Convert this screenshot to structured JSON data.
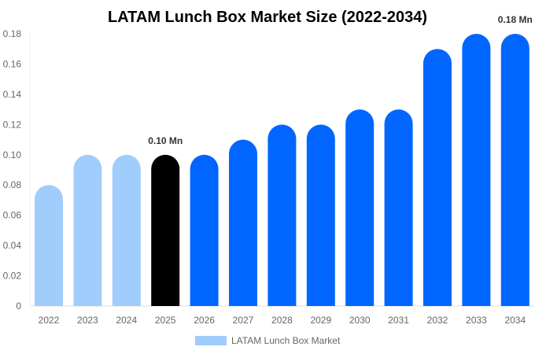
{
  "chart_data": {
    "type": "bar",
    "title": "LATAM Lunch Box Market Size (2022-2034)",
    "categories": [
      "2022",
      "2023",
      "2024",
      "2025",
      "2026",
      "2027",
      "2028",
      "2029",
      "2030",
      "2031",
      "2032",
      "2033",
      "2034"
    ],
    "series": [
      {
        "name": "LATAM Lunch Box Market",
        "values": [
          0.08,
          0.1,
          0.1,
          0.1,
          0.1,
          0.11,
          0.12,
          0.12,
          0.13,
          0.13,
          0.17,
          0.18,
          0.18
        ]
      }
    ],
    "data_labels": [
      {
        "category": "2025",
        "text": "0.10 Mn"
      },
      {
        "category": "2034",
        "text": "0.18 Mn"
      }
    ],
    "yticks": [
      "0",
      "0.02",
      "0.04",
      "0.06",
      "0.08",
      "0.10",
      "0.12",
      "0.14",
      "0.16",
      "0.18"
    ],
    "ylim": [
      0,
      0.18
    ],
    "xlabel": "",
    "ylabel": "",
    "grid": false,
    "legend": "bottom",
    "colors": {
      "historical": "#a0cdfc",
      "current": "#000000",
      "forecast": "#0066ff",
      "legend": "#a0cdfc"
    },
    "bar_color_by_category": [
      "historical",
      "historical",
      "historical",
      "current",
      "forecast",
      "forecast",
      "forecast",
      "forecast",
      "forecast",
      "forecast",
      "forecast",
      "forecast",
      "forecast"
    ]
  }
}
